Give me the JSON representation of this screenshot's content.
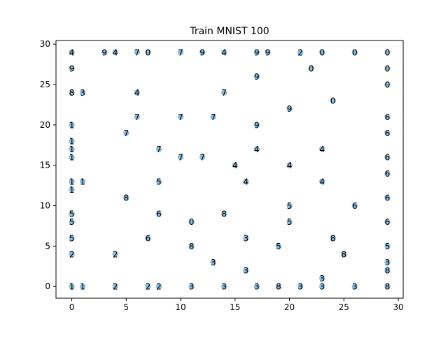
{
  "chart_data": {
    "type": "scatter",
    "title": "Train MNIST 100",
    "xlabel": "",
    "ylabel": "",
    "xlim": [
      -1.45,
      30.45
    ],
    "ylim": [
      -1.45,
      30.45
    ],
    "xticks": [
      0,
      5,
      10,
      15,
      20,
      25,
      30
    ],
    "yticks": [
      0,
      5,
      10,
      15,
      20,
      25,
      30
    ],
    "grid": false,
    "legend": "none",
    "colors": {
      "point": "#1f77b4",
      "point_alpha": 0.5,
      "label": "#000000",
      "axis": "#000000"
    },
    "points": [
      {
        "x": 0,
        "y": 29,
        "label": "4"
      },
      {
        "x": 3,
        "y": 29,
        "label": "9"
      },
      {
        "x": 4,
        "y": 29,
        "label": "4"
      },
      {
        "x": 6,
        "y": 29,
        "label": "7"
      },
      {
        "x": 7,
        "y": 29,
        "label": "0"
      },
      {
        "x": 10,
        "y": 29,
        "label": "7"
      },
      {
        "x": 12,
        "y": 29,
        "label": "9"
      },
      {
        "x": 14,
        "y": 29,
        "label": "4"
      },
      {
        "x": 17,
        "y": 29,
        "label": "9"
      },
      {
        "x": 18,
        "y": 29,
        "label": "9"
      },
      {
        "x": 21,
        "y": 29,
        "label": "2"
      },
      {
        "x": 23,
        "y": 29,
        "label": "0"
      },
      {
        "x": 26,
        "y": 29,
        "label": "0"
      },
      {
        "x": 29,
        "y": 29,
        "label": "0"
      },
      {
        "x": 0,
        "y": 27,
        "label": "9"
      },
      {
        "x": 22,
        "y": 27,
        "label": "0"
      },
      {
        "x": 29,
        "y": 27,
        "label": "0"
      },
      {
        "x": 17,
        "y": 26,
        "label": "9"
      },
      {
        "x": 29,
        "y": 25,
        "label": "0"
      },
      {
        "x": 0,
        "y": 24,
        "label": "8"
      },
      {
        "x": 1,
        "y": 24,
        "label": "3"
      },
      {
        "x": 6,
        "y": 24,
        "label": "4"
      },
      {
        "x": 14,
        "y": 24,
        "label": "7"
      },
      {
        "x": 24,
        "y": 23,
        "label": "0"
      },
      {
        "x": 20,
        "y": 22,
        "label": "9"
      },
      {
        "x": 6,
        "y": 21,
        "label": "7"
      },
      {
        "x": 10,
        "y": 21,
        "label": "7"
      },
      {
        "x": 13,
        "y": 21,
        "label": "7"
      },
      {
        "x": 29,
        "y": 21,
        "label": "6"
      },
      {
        "x": 0,
        "y": 20,
        "label": "1"
      },
      {
        "x": 17,
        "y": 20,
        "label": "9"
      },
      {
        "x": 5,
        "y": 19,
        "label": "7"
      },
      {
        "x": 29,
        "y": 19,
        "label": "6"
      },
      {
        "x": 0,
        "y": 18,
        "label": "1"
      },
      {
        "x": 0,
        "y": 17,
        "label": "1"
      },
      {
        "x": 8,
        "y": 17,
        "label": "7"
      },
      {
        "x": 17,
        "y": 17,
        "label": "4"
      },
      {
        "x": 23,
        "y": 17,
        "label": "4"
      },
      {
        "x": 0,
        "y": 16,
        "label": "1"
      },
      {
        "x": 10,
        "y": 16,
        "label": "7"
      },
      {
        "x": 12,
        "y": 16,
        "label": "7"
      },
      {
        "x": 29,
        "y": 16,
        "label": "6"
      },
      {
        "x": 15,
        "y": 15,
        "label": "4"
      },
      {
        "x": 20,
        "y": 15,
        "label": "4"
      },
      {
        "x": 29,
        "y": 14,
        "label": "6"
      },
      {
        "x": 0,
        "y": 13,
        "label": "1"
      },
      {
        "x": 1,
        "y": 13,
        "label": "1"
      },
      {
        "x": 8,
        "y": 13,
        "label": "5"
      },
      {
        "x": 16,
        "y": 13,
        "label": "4"
      },
      {
        "x": 23,
        "y": 13,
        "label": "4"
      },
      {
        "x": 0,
        "y": 12,
        "label": "1"
      },
      {
        "x": 5,
        "y": 11,
        "label": "8"
      },
      {
        "x": 29,
        "y": 11,
        "label": "6"
      },
      {
        "x": 20,
        "y": 10,
        "label": "5"
      },
      {
        "x": 26,
        "y": 10,
        "label": "6"
      },
      {
        "x": 0,
        "y": 9,
        "label": "5"
      },
      {
        "x": 8,
        "y": 9,
        "label": "6"
      },
      {
        "x": 14,
        "y": 9,
        "label": "8"
      },
      {
        "x": 0,
        "y": 8,
        "label": "5"
      },
      {
        "x": 11,
        "y": 8,
        "label": "0"
      },
      {
        "x": 20,
        "y": 8,
        "label": "5"
      },
      {
        "x": 29,
        "y": 8,
        "label": "6"
      },
      {
        "x": 0,
        "y": 6,
        "label": "5"
      },
      {
        "x": 7,
        "y": 6,
        "label": "6"
      },
      {
        "x": 16,
        "y": 6,
        "label": "3"
      },
      {
        "x": 24,
        "y": 6,
        "label": "8"
      },
      {
        "x": 11,
        "y": 5,
        "label": "8"
      },
      {
        "x": 19,
        "y": 5,
        "label": "5"
      },
      {
        "x": 29,
        "y": 5,
        "label": "5"
      },
      {
        "x": 0,
        "y": 4,
        "label": "2"
      },
      {
        "x": 4,
        "y": 4,
        "label": "2"
      },
      {
        "x": 25,
        "y": 4,
        "label": "8"
      },
      {
        "x": 13,
        "y": 3,
        "label": "3"
      },
      {
        "x": 29,
        "y": 3,
        "label": "3"
      },
      {
        "x": 16,
        "y": 2,
        "label": "3"
      },
      {
        "x": 29,
        "y": 2,
        "label": "8"
      },
      {
        "x": 23,
        "y": 1,
        "label": "3"
      },
      {
        "x": 0,
        "y": 0,
        "label": "1"
      },
      {
        "x": 1,
        "y": 0,
        "label": "1"
      },
      {
        "x": 4,
        "y": 0,
        "label": "2"
      },
      {
        "x": 7,
        "y": 0,
        "label": "2"
      },
      {
        "x": 8,
        "y": 0,
        "label": "2"
      },
      {
        "x": 11,
        "y": 0,
        "label": "3"
      },
      {
        "x": 14,
        "y": 0,
        "label": "3"
      },
      {
        "x": 17,
        "y": 0,
        "label": "3"
      },
      {
        "x": 19,
        "y": 0,
        "label": "8"
      },
      {
        "x": 21,
        "y": 0,
        "label": "3"
      },
      {
        "x": 23,
        "y": 0,
        "label": "3"
      },
      {
        "x": 26,
        "y": 0,
        "label": "3"
      },
      {
        "x": 29,
        "y": 0,
        "label": "8"
      }
    ]
  }
}
